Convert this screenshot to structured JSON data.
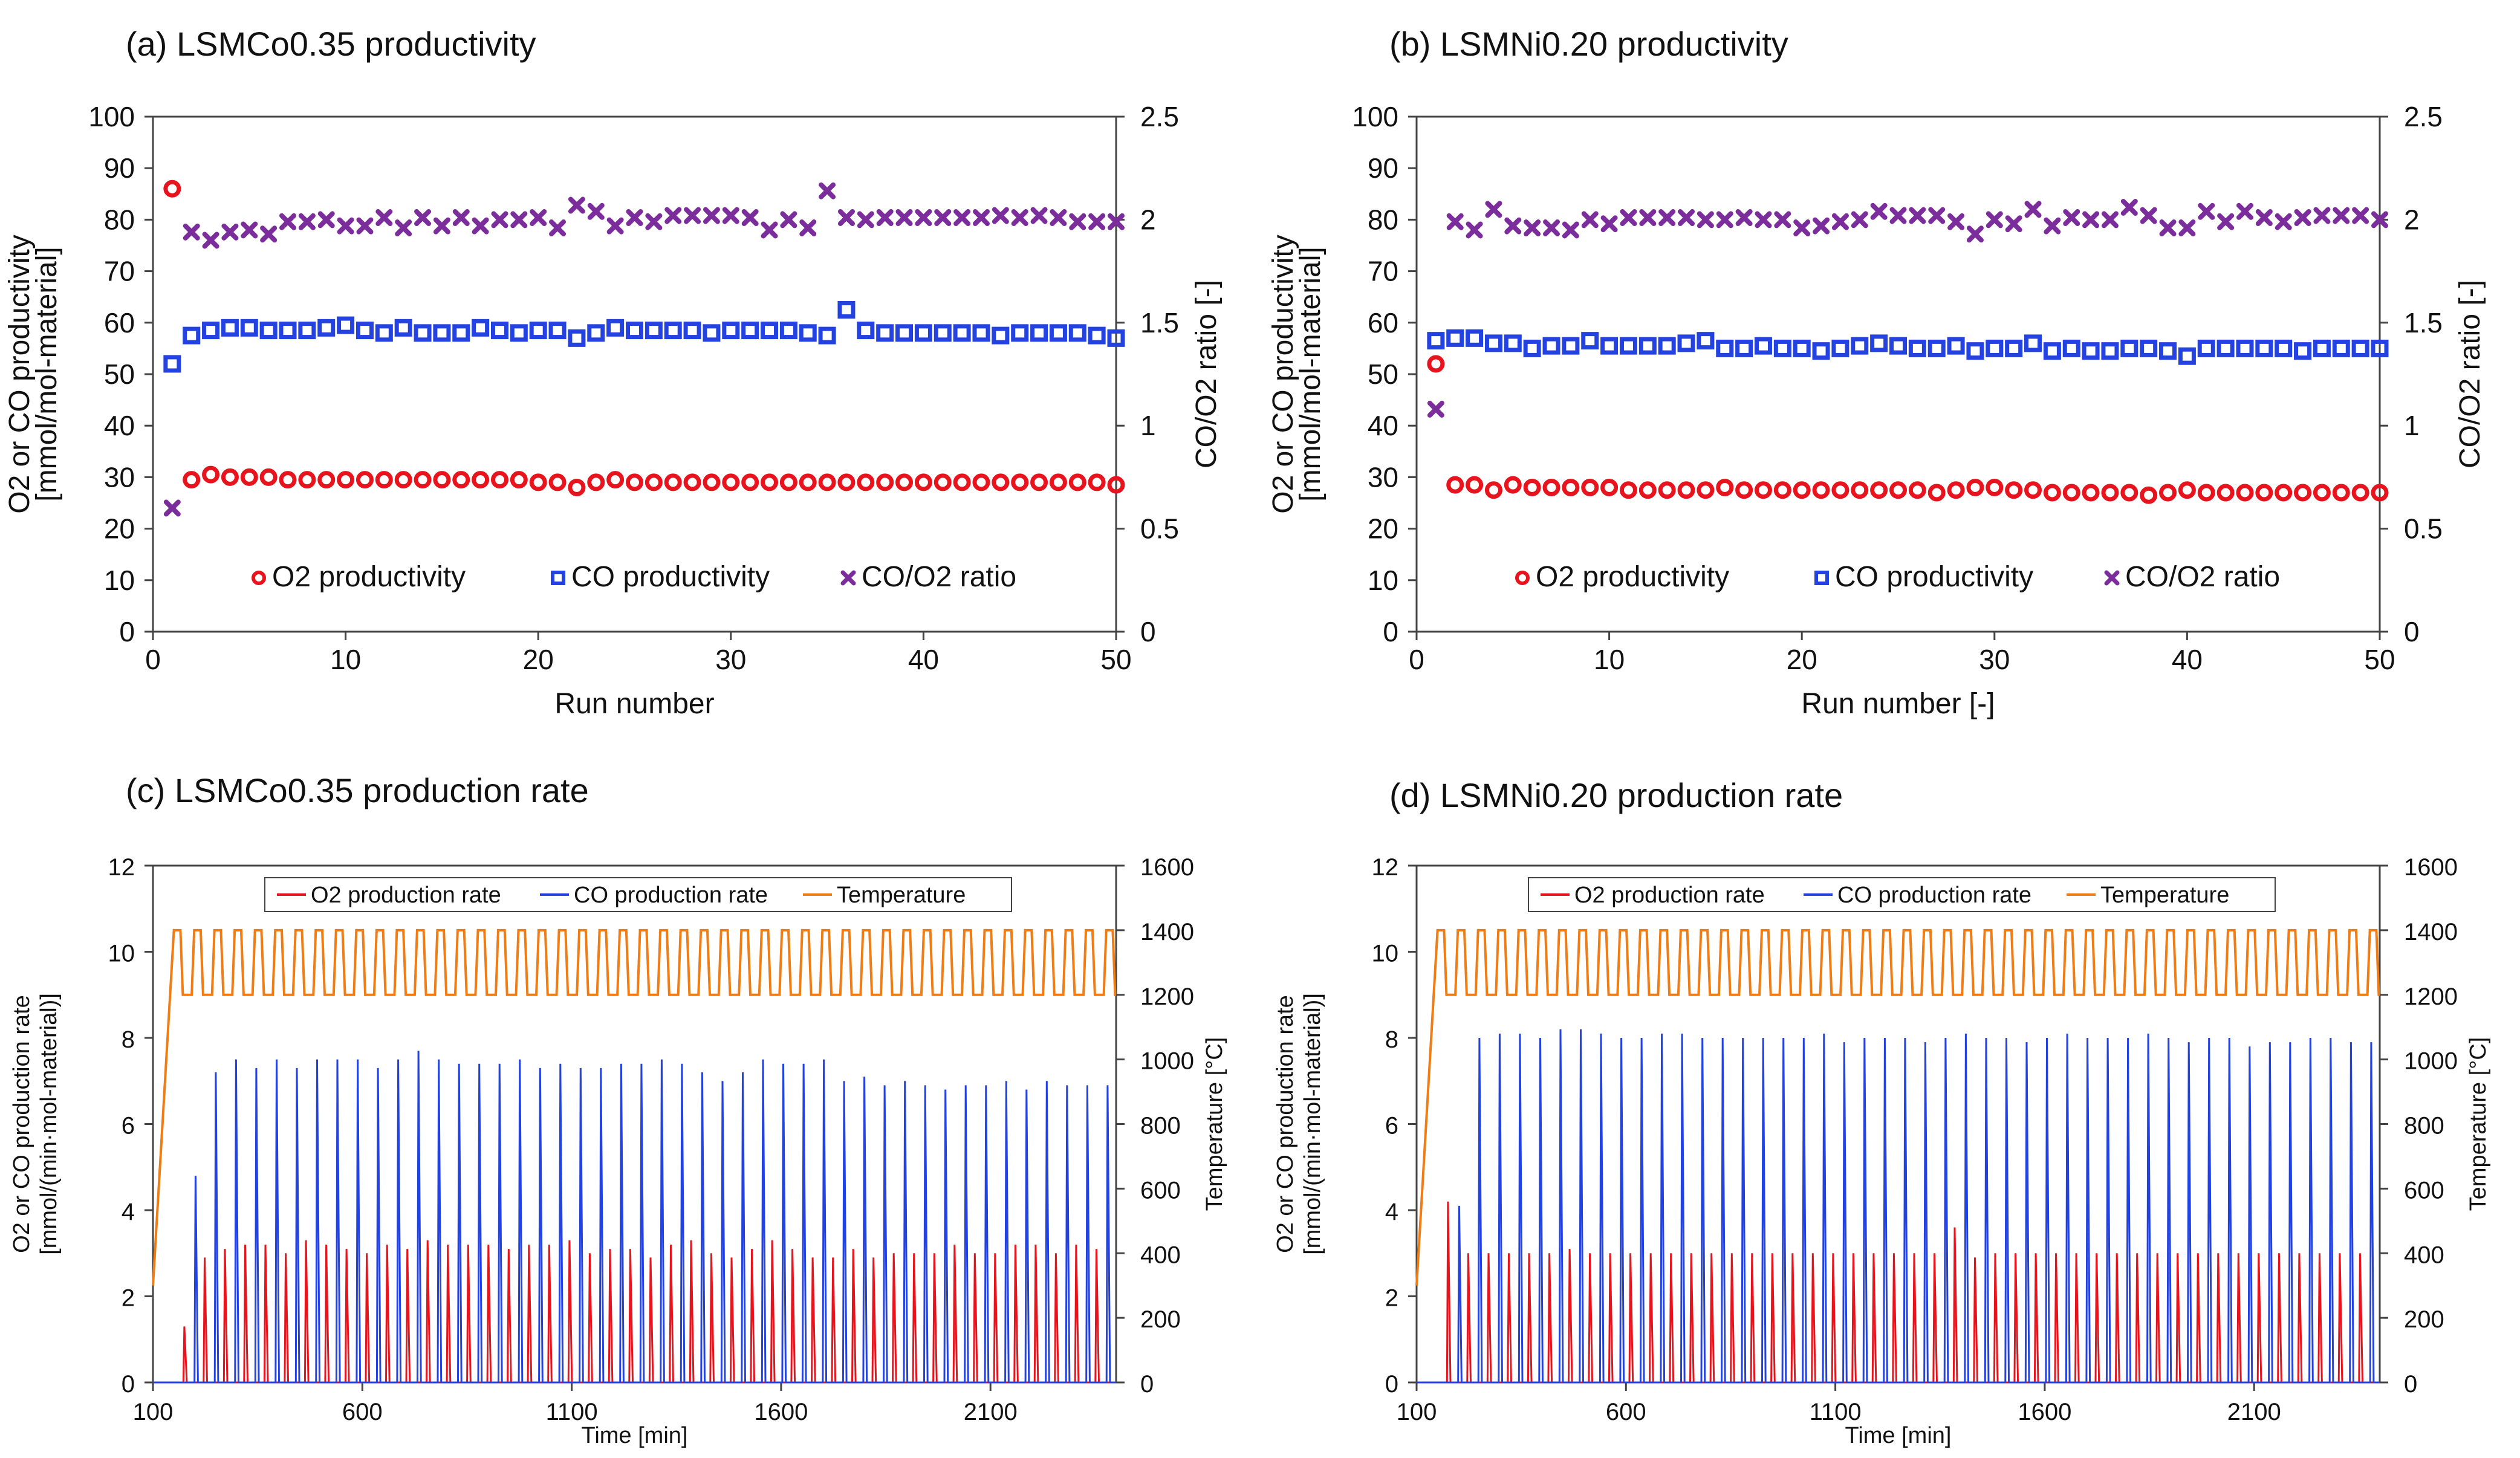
{
  "chart_data": [
    {
      "id": "a",
      "type": "scatter",
      "title": "(a) LSMCo0.35 productivity",
      "xlabel": "Run number",
      "ylabel_line1": "O2 or CO productivity",
      "ylabel_line2": "[mmol/mol-material]",
      "y2label": "CO/O2 ratio [-]",
      "xlim": [
        0,
        50
      ],
      "ylim": [
        0,
        100
      ],
      "y2lim": [
        0,
        2.5
      ],
      "xticks": [
        0,
        10,
        20,
        30,
        40,
        50
      ],
      "yticks": [
        0,
        10,
        20,
        30,
        40,
        50,
        60,
        70,
        80,
        90,
        100
      ],
      "y2ticks": [
        0,
        0.5,
        1,
        1.5,
        2,
        2.5
      ],
      "y2tick_labels": [
        "0",
        "0.5",
        "1",
        "1.5",
        "2",
        "2.5"
      ],
      "legend_position": "lower-center",
      "series": [
        {
          "name": "O2 productivity",
          "axis": "left",
          "marker": "circle",
          "color": "#e8141d",
          "values": [
            86,
            29.5,
            30.5,
            30,
            30,
            30,
            29.5,
            29.5,
            29.5,
            29.5,
            29.5,
            29.5,
            29.5,
            29.5,
            29.5,
            29.5,
            29.5,
            29.5,
            29.5,
            29,
            29,
            28,
            29,
            29.5,
            29,
            29,
            29,
            29,
            29,
            29,
            29,
            29,
            29,
            29,
            29,
            29,
            29,
            29,
            29,
            29,
            29,
            29,
            29,
            29,
            29,
            29,
            29,
            29,
            29,
            28.5
          ]
        },
        {
          "name": "CO productivity",
          "axis": "left",
          "marker": "square",
          "color": "#2342e0",
          "values": [
            52,
            57.5,
            58.5,
            59,
            59,
            58.5,
            58.5,
            58.5,
            59,
            59.5,
            58.5,
            58,
            59,
            58,
            58,
            58,
            59,
            58.5,
            58,
            58.5,
            58.5,
            57,
            58,
            59,
            58.5,
            58.5,
            58.5,
            58.5,
            58,
            58.5,
            58.5,
            58.5,
            58.5,
            58,
            57.5,
            62.5,
            58.5,
            58,
            58,
            58,
            58,
            58,
            58,
            57.5,
            58,
            58,
            58,
            58,
            57.5,
            57
          ]
        },
        {
          "name": "CO/O2 ratio",
          "axis": "right",
          "marker": "x",
          "color": "#7b2d9c",
          "values": [
            0.6,
            1.94,
            1.9,
            1.94,
            1.95,
            1.93,
            1.99,
            1.99,
            2,
            1.97,
            1.97,
            2.01,
            1.96,
            2.01,
            1.97,
            2.01,
            1.97,
            2,
            2,
            2.01,
            1.96,
            2.07,
            2.04,
            1.97,
            2.01,
            1.99,
            2.02,
            2.02,
            2.02,
            2.02,
            2.01,
            1.95,
            2,
            1.96,
            2.14,
            2.01,
            2,
            2.01,
            2.01,
            2.01,
            2.01,
            2.01,
            2.01,
            2.02,
            2.01,
            2.02,
            2.01,
            1.99,
            1.99,
            1.99
          ]
        }
      ]
    },
    {
      "id": "b",
      "type": "scatter",
      "title": "(b) LSMNi0.20 productivity",
      "xlabel": "Run number [-]",
      "ylabel_line1": "O2 or CO productivity",
      "ylabel_line2": "[mmol/mol-material]",
      "y2label": "CO/O2 ratio [-]",
      "xlim": [
        0,
        50
      ],
      "ylim": [
        0,
        100
      ],
      "y2lim": [
        0,
        2.5
      ],
      "xticks": [
        0,
        10,
        20,
        30,
        40,
        50
      ],
      "yticks": [
        0,
        10,
        20,
        30,
        40,
        50,
        60,
        70,
        80,
        90,
        100
      ],
      "y2ticks": [
        0,
        0.5,
        1,
        1.5,
        2,
        2.5
      ],
      "y2tick_labels": [
        "0",
        "0.5",
        "1",
        "1.5",
        "2",
        "2.5"
      ],
      "legend_position": "lower-center",
      "series": [
        {
          "name": "O2 productivity",
          "axis": "left",
          "marker": "circle",
          "color": "#e8141d",
          "values": [
            52,
            28.5,
            28.5,
            27.5,
            28.5,
            28,
            28,
            28,
            28,
            28,
            27.5,
            27.5,
            27.5,
            27.5,
            27.5,
            28,
            27.5,
            27.5,
            27.5,
            27.5,
            27.5,
            27.5,
            27.5,
            27.5,
            27.5,
            27.5,
            27,
            27.5,
            28,
            28,
            27.5,
            27.5,
            27,
            27,
            27,
            27,
            27,
            26.5,
            27,
            27.5,
            27,
            27,
            27,
            27,
            27,
            27,
            27,
            27,
            27,
            27
          ]
        },
        {
          "name": "CO productivity",
          "axis": "left",
          "marker": "square",
          "color": "#2342e0",
          "values": [
            56.5,
            57,
            57,
            56,
            56,
            55,
            55.5,
            55.5,
            56.5,
            55.5,
            55.5,
            55.5,
            55.5,
            56,
            56.5,
            55,
            55,
            55.5,
            55,
            55,
            54.5,
            55,
            55.5,
            56,
            55.5,
            55,
            55,
            55.5,
            54.5,
            55,
            55,
            56,
            54.5,
            55,
            54.5,
            54.5,
            55,
            55,
            54.5,
            53.5,
            55,
            55,
            55,
            55,
            55,
            54.5,
            55,
            55,
            55,
            55
          ]
        },
        {
          "name": "CO/O2 ratio",
          "axis": "right",
          "marker": "x",
          "color": "#7b2d9c",
          "values": [
            1.08,
            1.99,
            1.95,
            2.05,
            1.97,
            1.96,
            1.96,
            1.95,
            2,
            1.98,
            2.01,
            2.01,
            2.01,
            2.01,
            2,
            2,
            2.01,
            2,
            2,
            1.96,
            1.97,
            1.99,
            2,
            2.04,
            2.02,
            2.02,
            2.02,
            1.99,
            1.93,
            2,
            1.98,
            2.05,
            1.97,
            2.01,
            2,
            2,
            2.06,
            2.02,
            1.96,
            1.96,
            2.04,
            1.99,
            2.04,
            2.01,
            1.99,
            2.01,
            2.02,
            2.02,
            2.02,
            2
          ]
        }
      ]
    },
    {
      "id": "c",
      "type": "line",
      "title": "(c) LSMCo0.35 production rate",
      "xlabel": "Time [min]",
      "ylabel_line1": "O2 or CO production rate",
      "ylabel_line2": "[mmol/(min·mol-material)]",
      "y2label": "Temperature [°C]",
      "xlim": [
        100,
        2400
      ],
      "ylim": [
        0,
        12
      ],
      "y2lim": [
        0,
        1600
      ],
      "xticks": [
        100,
        600,
        1100,
        1600,
        2100
      ],
      "yticks": [
        0,
        2,
        4,
        6,
        8,
        10,
        12
      ],
      "y2ticks": [
        0,
        200,
        400,
        600,
        800,
        1000,
        1200,
        1400,
        1600
      ],
      "legend_position": "top",
      "cycles": 46,
      "cycle_start_min": 175,
      "cycle_period_min": 48.4,
      "temperature": {
        "name": "Temperature",
        "color": "#f07c16",
        "start": 300,
        "ramp_end_min": 150,
        "high": 1400,
        "low": 1200
      },
      "series": [
        {
          "name": "O2 production rate",
          "color": "#e8141d",
          "peaks": [
            1.3,
            2.9,
            3.1,
            3.2,
            3.2,
            3,
            3.3,
            3.2,
            3.1,
            3,
            3.2,
            3.1,
            3.3,
            3.2,
            3.2,
            3.2,
            3.1,
            3.2,
            3.2,
            3.3,
            3,
            3.1,
            3.1,
            2.9,
            3.2,
            3.3,
            3,
            2.9,
            3.1,
            3.3,
            3.1,
            2.9,
            2.9,
            3.1,
            2.9,
            3,
            3,
            3,
            3.2,
            3,
            3,
            3.2,
            3.2,
            3,
            3.2,
            3.1
          ]
        },
        {
          "name": "CO production rate",
          "color": "#2342e0",
          "peaks": [
            4.8,
            7.2,
            7.5,
            7.3,
            7.5,
            7.3,
            7.5,
            7.5,
            7.5,
            7.3,
            7.5,
            7.7,
            7.5,
            7.4,
            7.4,
            7.4,
            7.5,
            7.3,
            7.4,
            7.3,
            7.3,
            7.4,
            7.4,
            7.5,
            7.4,
            7.2,
            7,
            7.2,
            7.5,
            7.4,
            7.4,
            7.5,
            7,
            7.1,
            6.9,
            7,
            6.9,
            6.8,
            6.9,
            6.9,
            7,
            6.8,
            7,
            6.9,
            6.9,
            6.9
          ]
        }
      ]
    },
    {
      "id": "d",
      "type": "line",
      "title": "(d) LSMNi0.20 production rate",
      "xlabel": "Time [min]",
      "ylabel_line1": "O2 or CO production rate",
      "ylabel_line2": "[mmol/(min·mol-material)]",
      "y2label": "Temperature [°C]",
      "xlim": [
        100,
        2400
      ],
      "ylim": [
        0,
        12
      ],
      "y2lim": [
        0,
        1600
      ],
      "xticks": [
        100,
        600,
        1100,
        1600,
        2100
      ],
      "yticks": [
        0,
        2,
        4,
        6,
        8,
        10,
        12
      ],
      "y2ticks": [
        0,
        200,
        400,
        600,
        800,
        1000,
        1200,
        1400,
        1600
      ],
      "legend_position": "top",
      "cycles": 46,
      "cycle_start_min": 175,
      "cycle_period_min": 48.4,
      "temperature": {
        "name": "Temperature",
        "color": "#f07c16",
        "start": 300,
        "ramp_end_min": 150,
        "high": 1400,
        "low": 1200
      },
      "series": [
        {
          "name": "O2 production rate",
          "color": "#e8141d",
          "peaks": [
            4.2,
            3,
            3,
            3,
            3,
            3,
            3.1,
            3,
            3,
            3,
            3,
            3,
            3,
            3,
            3,
            3,
            3,
            3,
            3,
            3,
            3,
            3,
            3,
            3,
            3,
            3.6,
            2.9,
            3,
            3,
            3,
            3,
            3,
            3,
            3,
            3,
            3,
            3,
            3,
            3,
            3,
            3,
            3,
            3,
            3,
            3,
            3
          ]
        },
        {
          "name": "CO production rate",
          "color": "#2342e0",
          "peaks": [
            4.1,
            8,
            8.1,
            8.1,
            8,
            8.2,
            8.2,
            8.1,
            8,
            8,
            8.1,
            8.1,
            8,
            8,
            8,
            8,
            8,
            8,
            8.1,
            7.9,
            8,
            8,
            8,
            7.9,
            8,
            8.1,
            8,
            8,
            7.9,
            8,
            8.1,
            8,
            8,
            8,
            8.1,
            8,
            7.9,
            8,
            8,
            7.8,
            7.9,
            7.9,
            8,
            8,
            7.9,
            7.9
          ]
        }
      ]
    }
  ]
}
